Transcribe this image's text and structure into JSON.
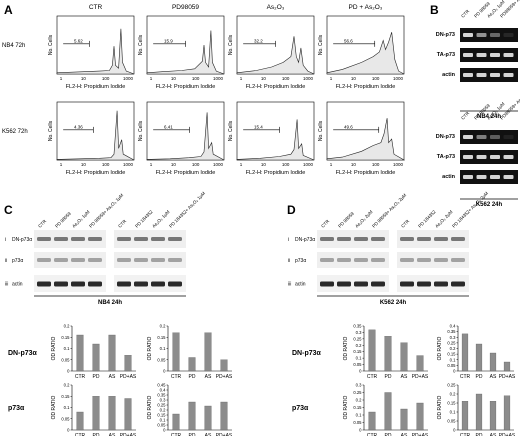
{
  "panel_letters": [
    "A",
    "B",
    "C",
    "D"
  ],
  "panel_a": {
    "column_titles": [
      "CTR",
      "PD98059",
      "As₂O₃",
      "PD + As₂O₃"
    ],
    "row_labels": [
      "NB4 72h",
      "K562 72h"
    ],
    "y_axis_label": "No. Cells",
    "x_axis_label": "FL2-H: Propidium Iodide",
    "tick_labels": [
      "1",
      "10",
      "100",
      "1000"
    ],
    "percent_values": [
      [
        "5.62",
        "15.9",
        "32.2",
        "56.6"
      ],
      [
        "4.36",
        "6.41",
        "15.4",
        "49.6"
      ]
    ]
  },
  "panel_b": {
    "lane_labels": [
      "CTR",
      "PD 98059",
      "As₂O₃ 1μM",
      "PD98059+ As₂O₃ 1μM"
    ],
    "band_labels": [
      "DN-p73",
      "TA-p73",
      "actin"
    ],
    "blots": [
      {
        "caption": "NB4 24h"
      },
      {
        "caption": "K562 24h"
      }
    ]
  },
  "panel_c": {
    "lane_labels_left": [
      "CTR",
      "PD 98059",
      "As₂O₃ 1μM",
      "PD 98059+ As₂O₃ 1μM"
    ],
    "lane_labels_right": [
      "CTR",
      "PD 184352",
      "As₂O₃ 1μM",
      "PD 184352+ As₂O₃ 1μM"
    ],
    "roman": [
      "i",
      "ii",
      "iii"
    ],
    "band_labels": [
      "DN-p73α",
      "p73α",
      "actin"
    ],
    "caption": "NB4 24h"
  },
  "panel_d": {
    "lane_labels_left": [
      "CTR",
      "PD 98059",
      "As₂O₃ 2μM",
      "PD 98059+ As₂O₃ 2μM"
    ],
    "lane_labels_right": [
      "CTR",
      "PD 184352",
      "As₂O₃ 2μM",
      "PD 184352+ As₂O₃ 2μM"
    ],
    "roman": [
      "i",
      "ii",
      "iii"
    ],
    "band_labels": [
      "DN-p73α",
      "p73α",
      "actin"
    ],
    "caption": "K562 24h"
  },
  "bar_row_labels": [
    "DN-p73α",
    "p73α"
  ],
  "chart_data": [
    {
      "type": "bar",
      "categories": [
        "CTR",
        "PD",
        "AS",
        "PD+AS"
      ],
      "values": [
        0.16,
        0.12,
        0.16,
        0.07
      ],
      "ylabel": "OD RATIO",
      "ylim": [
        0,
        0.2
      ],
      "yticks": [
        "0",
        "0.05",
        "0.1",
        "0.15",
        "0.2"
      ],
      "grid": false
    },
    {
      "type": "bar",
      "categories": [
        "CTR",
        "PD",
        "AS",
        "PD+AS"
      ],
      "values": [
        0.17,
        0.06,
        0.17,
        0.05
      ],
      "ylabel": "OD RATIO",
      "ylim": [
        0,
        0.2
      ],
      "yticks": [
        "0",
        "0.05",
        "0.1",
        "0.15",
        "0.2"
      ],
      "grid": false
    },
    {
      "type": "bar",
      "categories": [
        "CTR",
        "PD",
        "AS",
        "PD+AS"
      ],
      "values": [
        0.08,
        0.15,
        0.15,
        0.14
      ],
      "ylabel": "OD RATIO",
      "ylim": [
        0,
        0.2
      ],
      "yticks": [
        "0",
        "0.05",
        "0.1",
        "0.15",
        "0.2"
      ],
      "grid": false
    },
    {
      "type": "bar",
      "categories": [
        "CTR",
        "PD",
        "AS",
        "PD+AS"
      ],
      "values": [
        0.16,
        0.28,
        0.24,
        0.28
      ],
      "ylabel": "OD RATIO",
      "ylim": [
        0,
        0.45
      ],
      "yticks": [
        "0",
        "0.05",
        "0.1",
        "0.15",
        "0.2",
        "0.25",
        "0.3",
        "0.35",
        "0.4",
        "0.45"
      ],
      "grid": false
    },
    {
      "type": "bar",
      "categories": [
        "CTR",
        "PD",
        "AS",
        "PD+AS"
      ],
      "values": [
        0.32,
        0.27,
        0.22,
        0.12
      ],
      "ylabel": "OD RATIO",
      "ylim": [
        0,
        0.35
      ],
      "yticks": [
        "0",
        "0.05",
        "0.1",
        "0.15",
        "0.2",
        "0.25",
        "0.3",
        "0.35"
      ],
      "grid": false
    },
    {
      "type": "bar",
      "categories": [
        "CTR",
        "PD",
        "AS",
        "PD+AS"
      ],
      "values": [
        0.33,
        0.24,
        0.16,
        0.08
      ],
      "ylabel": "OD RATIO",
      "ylim": [
        0,
        0.4
      ],
      "yticks": [
        "0",
        "0.05",
        "0.1",
        "0.15",
        "0.2",
        "0.25",
        "0.3",
        "0.35",
        "0.4"
      ],
      "grid": false
    },
    {
      "type": "bar",
      "categories": [
        "CTR",
        "PD",
        "AS",
        "PD+AS"
      ],
      "values": [
        0.12,
        0.25,
        0.14,
        0.18
      ],
      "ylabel": "OD RATIO",
      "ylim": [
        0,
        0.3
      ],
      "yticks": [
        "0",
        "0.05",
        "0.1",
        "0.15",
        "0.2",
        "0.25",
        "0.3"
      ],
      "grid": false
    },
    {
      "type": "bar",
      "categories": [
        "CTR",
        "PD",
        "AS",
        "PD+AS"
      ],
      "values": [
        0.16,
        0.2,
        0.16,
        0.19
      ],
      "ylabel": "OD RATIO",
      "ylim": [
        0,
        0.25
      ],
      "yticks": [
        "0",
        "0.05",
        "0.1",
        "0.15",
        "0.2",
        "0.25"
      ],
      "grid": false
    }
  ]
}
